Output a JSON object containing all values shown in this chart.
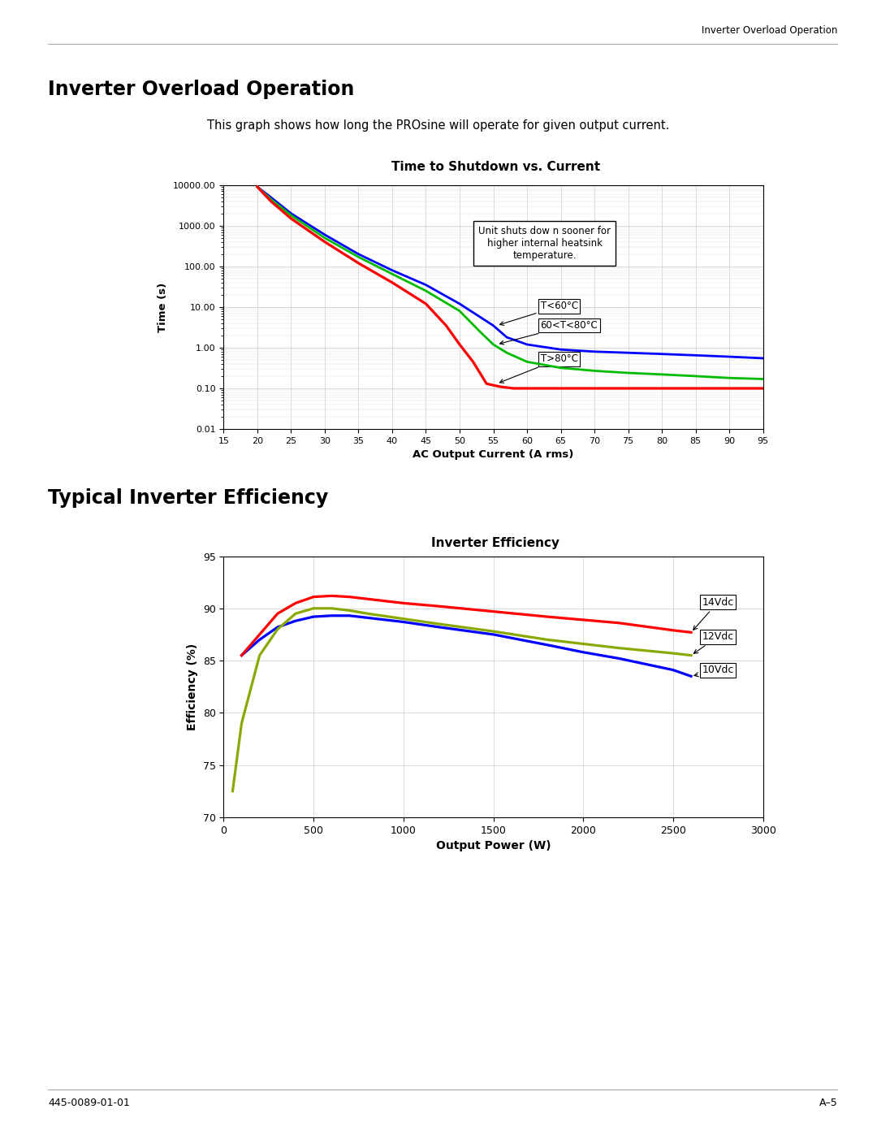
{
  "page_header": "Inverter Overload Operation",
  "page_footer_left": "445-0089-01-01",
  "page_footer_right": "A–5",
  "section1_title": "Inverter Overload Operation",
  "section1_desc": "This graph shows how long the PROsine will operate for given output current.",
  "chart1_title": "Time to Shutdown vs. Current",
  "chart1_xlabel": "AC Output Current (A rms)",
  "chart1_ylabel": "Time (s)",
  "chart1_xlim": [
    15,
    95
  ],
  "chart1_xticks": [
    15,
    20,
    25,
    30,
    35,
    40,
    45,
    50,
    55,
    60,
    65,
    70,
    75,
    80,
    85,
    90,
    95
  ],
  "chart1_yticks_labels": [
    "0.01",
    "0.10",
    "1.00",
    "10.00",
    "100.00",
    "1000.00",
    "10000.00"
  ],
  "chart1_yticks_vals": [
    0.01,
    0.1,
    1.0,
    10.0,
    100.0,
    1000.0,
    10000.0
  ],
  "chart1_annotation": "Unit shuts dow n sooner for\nhigher internal heatsink\ntemperature.",
  "curve1_blue_x": [
    20,
    22,
    25,
    30,
    35,
    40,
    45,
    50,
    55,
    57,
    60,
    65,
    70,
    75,
    80,
    85,
    90,
    95
  ],
  "curve1_blue_y": [
    9000,
    5000,
    2000,
    600,
    200,
    80,
    35,
    12,
    3.5,
    1.8,
    1.2,
    0.9,
    0.8,
    0.75,
    0.7,
    0.65,
    0.6,
    0.55
  ],
  "curve1_blue_color": "#0000ff",
  "curve1_green_x": [
    20,
    22,
    25,
    30,
    35,
    40,
    45,
    50,
    53,
    55,
    57,
    60,
    65,
    70,
    75,
    80,
    85,
    90,
    95
  ],
  "curve1_green_y": [
    9000,
    4500,
    1800,
    500,
    170,
    65,
    25,
    8,
    2.5,
    1.2,
    0.75,
    0.45,
    0.32,
    0.27,
    0.24,
    0.22,
    0.2,
    0.18,
    0.17
  ],
  "curve1_green_color": "#00bb00",
  "curve1_red_x": [
    20,
    22,
    25,
    30,
    35,
    40,
    45,
    48,
    50,
    52,
    54,
    56,
    58,
    60,
    65,
    70,
    75,
    80,
    85,
    90,
    95
  ],
  "curve1_red_y": [
    9000,
    4000,
    1500,
    400,
    120,
    40,
    12,
    3.5,
    1.2,
    0.45,
    0.13,
    0.11,
    0.1,
    0.1,
    0.1,
    0.1,
    0.1,
    0.1,
    0.1,
    0.1,
    0.1
  ],
  "curve1_red_color": "#ff0000",
  "label_T60": "T<60°C",
  "label_T60_80": "60<T<80°C",
  "label_T80": "T>80°C",
  "section2_title": "Typical Inverter Efficiency",
  "chart2_title": "Inverter Efficiency",
  "chart2_xlabel": "Output Power (W)",
  "chart2_ylabel": "Efficiency (%)",
  "chart2_xlim": [
    0,
    3000
  ],
  "chart2_ylim": [
    70,
    95
  ],
  "chart2_xticks": [
    0,
    500,
    1000,
    1500,
    2000,
    2500,
    3000
  ],
  "chart2_yticks": [
    70,
    75,
    80,
    85,
    90,
    95
  ],
  "curve2_red_x": [
    100,
    200,
    300,
    400,
    500,
    600,
    700,
    800,
    1000,
    1200,
    1500,
    1800,
    2000,
    2200,
    2500,
    2600
  ],
  "curve2_red_y": [
    85.5,
    87.5,
    89.5,
    90.5,
    91.1,
    91.2,
    91.1,
    90.9,
    90.5,
    90.2,
    89.7,
    89.2,
    88.9,
    88.6,
    87.9,
    87.7
  ],
  "curve2_red_color": "#ff0000",
  "curve2_green_x": [
    50,
    100,
    200,
    300,
    400,
    500,
    600,
    700,
    800,
    1000,
    1200,
    1500,
    1800,
    2000,
    2200,
    2500,
    2600
  ],
  "curve2_green_y": [
    72.5,
    79.0,
    85.5,
    88.0,
    89.5,
    90.0,
    90.0,
    89.8,
    89.5,
    89.0,
    88.5,
    87.8,
    87.0,
    86.6,
    86.2,
    85.7,
    85.5
  ],
  "curve2_green_color": "#88aa00",
  "curve2_blue_x": [
    100,
    200,
    300,
    400,
    500,
    600,
    700,
    800,
    1000,
    1200,
    1500,
    1800,
    2000,
    2200,
    2500,
    2600
  ],
  "curve2_blue_y": [
    85.5,
    87.0,
    88.2,
    88.8,
    89.2,
    89.3,
    89.3,
    89.1,
    88.7,
    88.2,
    87.5,
    86.5,
    85.8,
    85.2,
    84.1,
    83.5
  ],
  "curve2_blue_color": "#0000ff",
  "label_14Vdc": "14Vdc",
  "label_12Vdc": "12Vdc",
  "label_10Vdc": "10Vdc"
}
